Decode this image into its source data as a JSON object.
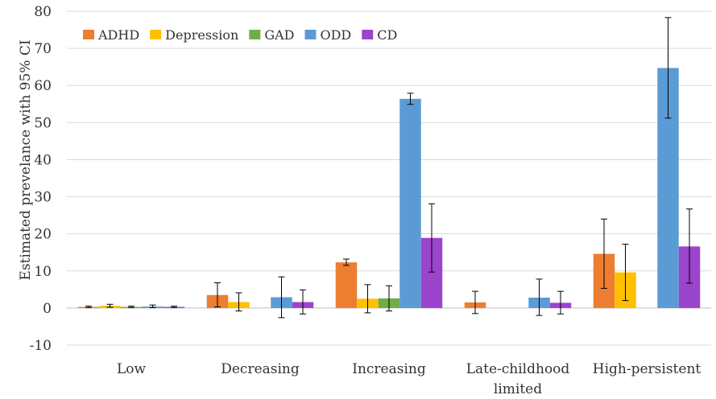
{
  "chart_data": {
    "type": "bar",
    "title": "",
    "xlabel": "",
    "ylabel": "Estimated prevelance with 95% CI",
    "ylim": [
      -10,
      80
    ],
    "yticks": [
      -10,
      0,
      10,
      20,
      30,
      40,
      50,
      60,
      70,
      80
    ],
    "grid": true,
    "legend_position": "top-left",
    "categories": [
      [
        "Low"
      ],
      [
        "Decreasing"
      ],
      [
        "Increasing"
      ],
      [
        "Late-childhood",
        "limited"
      ],
      [
        "High-persistent"
      ]
    ],
    "series": [
      {
        "name": "ADHD",
        "color": "#ED7D31",
        "values": [
          0.3,
          3.5,
          12.3,
          1.5,
          14.6
        ],
        "ci": [
          [
            0.1,
            0.5
          ],
          [
            0.3,
            6.8
          ],
          [
            11.5,
            13.2
          ],
          [
            -1.5,
            4.5
          ],
          [
            5.3,
            24.0
          ]
        ]
      },
      {
        "name": "Depression",
        "color": "#FFC000",
        "values": [
          0.6,
          1.6,
          2.5,
          0,
          9.6
        ],
        "ci": [
          [
            0.2,
            1.0
          ],
          [
            -0.8,
            4.1
          ],
          [
            -1.3,
            6.3
          ],
          [
            0,
            0
          ],
          [
            2.0,
            17.2
          ]
        ]
      },
      {
        "name": "GAD",
        "color": "#70AD47",
        "values": [
          0.3,
          0,
          2.6,
          0,
          0
        ],
        "ci": [
          [
            0.1,
            0.5
          ],
          [
            0,
            0
          ],
          [
            -0.8,
            6.0
          ],
          [
            0,
            0
          ],
          [
            0,
            0
          ]
        ]
      },
      {
        "name": "ODD",
        "color": "#5B9BD5",
        "values": [
          0.4,
          2.9,
          56.4,
          2.8,
          64.7
        ],
        "ci": [
          [
            0.1,
            0.8
          ],
          [
            -2.6,
            8.4
          ],
          [
            54.9,
            57.9
          ],
          [
            -2.0,
            7.8
          ],
          [
            51.2,
            78.3
          ]
        ]
      },
      {
        "name": "CD",
        "color": "#9B44CC",
        "values": [
          0.3,
          1.6,
          18.9,
          1.4,
          16.6
        ],
        "ci": [
          [
            0.1,
            0.5
          ],
          [
            -1.6,
            4.9
          ],
          [
            9.7,
            28.1
          ],
          [
            -1.6,
            4.5
          ],
          [
            6.7,
            26.7
          ]
        ]
      }
    ]
  }
}
